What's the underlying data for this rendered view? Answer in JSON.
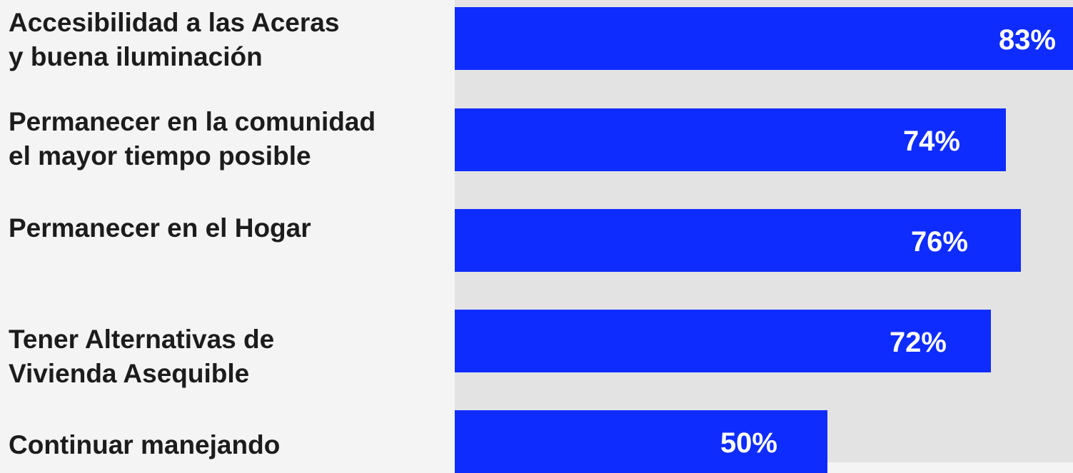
{
  "chart_data": {
    "type": "bar",
    "orientation": "horizontal",
    "categories": [
      "Accesibilidad a las Aceras\ny buena iluminación",
      "Permanecer en la comunidad\nel mayor tiempo posible",
      "Permanecer en el Hogar",
      "Tener Alternativas de\nVivienda Asequible",
      "Continuar manejando"
    ],
    "values": [
      83,
      74,
      76,
      72,
      50
    ],
    "value_labels": [
      "83%",
      "74%",
      "76%",
      "72%",
      "50%"
    ],
    "value_unit": "%",
    "title": "",
    "xlabel": "",
    "ylabel": "",
    "xlim": [
      0,
      83
    ],
    "grid": false,
    "legend": "none",
    "colors": {
      "bar": "#0f2cff",
      "plot_background": "#e3e3e3",
      "page_background": "#f4f4f4",
      "label_text": "#1c1c1c",
      "value_text": "#ffffff"
    }
  }
}
